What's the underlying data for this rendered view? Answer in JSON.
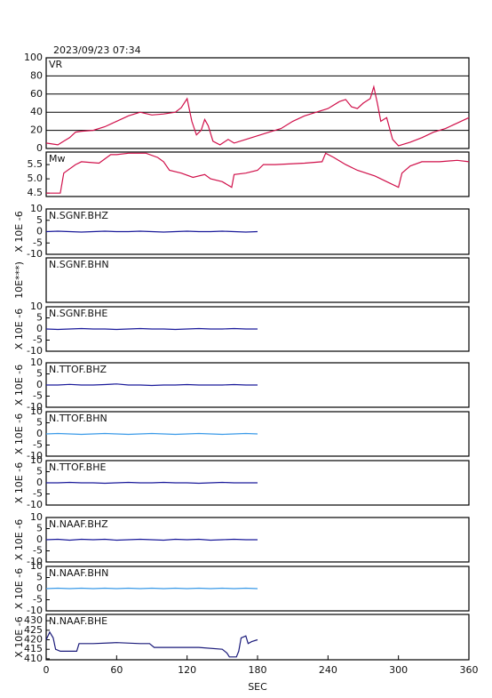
{
  "chart_data": [
    {
      "type": "line",
      "title": "2023/09/23 07:34",
      "label": "VR",
      "color": "#d0104a",
      "grid": true,
      "xlim": [
        0,
        360
      ],
      "ylim": [
        0,
        100
      ],
      "yticks": [
        0,
        20,
        40,
        60,
        80,
        100
      ],
      "x": [
        0,
        10,
        15,
        20,
        25,
        30,
        40,
        50,
        60,
        70,
        80,
        90,
        100,
        110,
        115,
        120,
        124,
        128,
        132,
        135,
        138,
        142,
        148,
        155,
        160,
        170,
        180,
        190,
        200,
        210,
        220,
        230,
        240,
        250,
        255,
        260,
        265,
        270,
        276,
        279,
        282,
        285,
        290,
        295,
        300,
        310,
        320,
        330,
        340,
        350,
        360
      ],
      "values": [
        6,
        4,
        8,
        12,
        18,
        19,
        20,
        24,
        30,
        36,
        40,
        37,
        38,
        40,
        45,
        55,
        30,
        15,
        20,
        32,
        25,
        8,
        4,
        10,
        6,
        10,
        14,
        18,
        22,
        30,
        36,
        40,
        44,
        52,
        54,
        46,
        44,
        50,
        55,
        68,
        50,
        30,
        34,
        10,
        3,
        7,
        12,
        18,
        22,
        28,
        34
      ]
    },
    {
      "type": "line",
      "label": "Mw",
      "color": "#d0104a",
      "xlim": [
        0,
        360
      ],
      "ylim": [
        4.38,
        5.94
      ],
      "yticks": [
        4.5,
        {
          "value": 5,
          "label": "5.0"
        },
        5.5
      ],
      "x": [
        0,
        12,
        15,
        25,
        30,
        45,
        55,
        60,
        70,
        85,
        95,
        100,
        105,
        115,
        125,
        135,
        140,
        150,
        158,
        160,
        170,
        180,
        185,
        195,
        220,
        235,
        238,
        245,
        255,
        265,
        280,
        290,
        300,
        303,
        310,
        320,
        335,
        350,
        360
      ],
      "values": [
        4.5,
        4.5,
        5.2,
        5.5,
        5.6,
        5.55,
        5.85,
        5.85,
        5.9,
        5.9,
        5.75,
        5.6,
        5.3,
        5.2,
        5.05,
        5.15,
        5.0,
        4.9,
        4.7,
        5.15,
        5.2,
        5.3,
        5.5,
        5.5,
        5.55,
        5.6,
        5.9,
        5.75,
        5.5,
        5.3,
        5.1,
        4.9,
        4.7,
        5.2,
        5.45,
        5.6,
        5.6,
        5.65,
        5.6
      ]
    },
    {
      "type": "line",
      "label": "N.SGNF.BHZ",
      "ylabel": "X 10E -6",
      "color": "#1a1a9a",
      "xlim": [
        0,
        360
      ],
      "ylim": [
        -10,
        10
      ],
      "yticks": [
        -10,
        -5,
        0,
        5,
        10
      ],
      "x": [
        0,
        10,
        20,
        30,
        40,
        50,
        60,
        70,
        80,
        90,
        100,
        110,
        120,
        130,
        140,
        150,
        160,
        170,
        180
      ],
      "values": [
        0,
        0.2,
        0,
        -0.2,
        0,
        0.2,
        0,
        0,
        0.2,
        0,
        -0.2,
        0,
        0.2,
        0,
        0,
        0.2,
        0,
        -0.2,
        0
      ]
    },
    {
      "type": "line",
      "label": "N.SGNF.BHN",
      "ylabel": "10E***)",
      "xlim": [
        0,
        360
      ],
      "ylim": [
        -10,
        10
      ]
    },
    {
      "type": "line",
      "label": "N.SGNF.BHE",
      "ylabel": "X 10E -6",
      "color": "#1a1a9a",
      "xlim": [
        0,
        360
      ],
      "ylim": [
        -10,
        10
      ],
      "yticks": [
        -10,
        -5,
        0,
        5,
        10
      ],
      "x": [
        0,
        10,
        20,
        30,
        40,
        50,
        60,
        70,
        80,
        90,
        100,
        110,
        120,
        130,
        140,
        150,
        160,
        170,
        180
      ],
      "values": [
        0,
        -0.2,
        0,
        0.2,
        0,
        0,
        -0.2,
        0,
        0.2,
        0,
        0,
        -0.2,
        0,
        0.2,
        0,
        0,
        0.2,
        0,
        0
      ]
    },
    {
      "type": "line",
      "label": "N.TTOF.BHZ",
      "ylabel": "X 10E -6",
      "color": "#1a1a9a",
      "xlim": [
        0,
        360
      ],
      "ylim": [
        -10,
        10
      ],
      "yticks": [
        -10,
        -5,
        0,
        5,
        10
      ],
      "x": [
        0,
        10,
        20,
        30,
        40,
        50,
        60,
        70,
        80,
        90,
        100,
        110,
        120,
        130,
        140,
        150,
        160,
        170,
        180
      ],
      "values": [
        0,
        0,
        0.3,
        0,
        0,
        0.2,
        0.5,
        0,
        0,
        -0.2,
        0,
        0,
        0.2,
        0,
        0,
        0,
        0.2,
        0,
        0
      ]
    },
    {
      "type": "line",
      "label": "N.TTOF.BHN",
      "ylabel": "X 10E -6",
      "color": "#3a9ae8",
      "xlim": [
        0,
        360
      ],
      "ylim": [
        -10,
        10
      ],
      "yticks": [
        -10,
        -5,
        0,
        5,
        10
      ],
      "x": [
        0,
        10,
        20,
        30,
        40,
        50,
        60,
        70,
        80,
        90,
        100,
        110,
        120,
        130,
        140,
        150,
        160,
        170,
        180
      ],
      "values": [
        0,
        0.2,
        0,
        -0.2,
        0,
        0.2,
        0,
        -0.2,
        0,
        0.2,
        0,
        -0.2,
        0,
        0.2,
        0,
        -0.2,
        0,
        0.2,
        0
      ]
    },
    {
      "type": "line",
      "label": "N.TTOF.BHE",
      "ylabel": "X 10E -6",
      "color": "#1a1a9a",
      "xlim": [
        0,
        360
      ],
      "ylim": [
        -10,
        10
      ],
      "yticks": [
        -10,
        -5,
        0,
        5,
        10
      ],
      "x": [
        0,
        10,
        20,
        30,
        40,
        50,
        60,
        70,
        80,
        90,
        100,
        110,
        120,
        130,
        140,
        150,
        160,
        170,
        180
      ],
      "values": [
        0,
        0,
        0.2,
        0,
        0,
        -0.2,
        0,
        0.2,
        0,
        0,
        0.2,
        0,
        0,
        -0.2,
        0,
        0.2,
        0,
        0,
        0
      ]
    },
    {
      "type": "line",
      "label": "N.NAAF.BHZ",
      "ylabel": "X 10E -6",
      "color": "#1a1a9a",
      "xlim": [
        0,
        360
      ],
      "ylim": [
        -10,
        10
      ],
      "yticks": [
        -10,
        -5,
        0,
        5,
        10
      ],
      "x": [
        0,
        10,
        20,
        30,
        40,
        50,
        60,
        70,
        80,
        90,
        100,
        110,
        120,
        130,
        140,
        150,
        160,
        170,
        180
      ],
      "values": [
        0,
        0.2,
        -0.2,
        0.2,
        0,
        0.2,
        -0.2,
        0,
        0.2,
        0,
        -0.2,
        0.2,
        0,
        0.2,
        -0.2,
        0,
        0.2,
        0,
        0
      ]
    },
    {
      "type": "line",
      "label": "N.NAAF.BHN",
      "ylabel": "X 10E -6",
      "color": "#3a9ae8",
      "xlim": [
        0,
        360
      ],
      "ylim": [
        -10,
        10
      ],
      "yticks": [
        -10,
        -5,
        0,
        5,
        10
      ],
      "x": [
        0,
        10,
        20,
        30,
        40,
        50,
        60,
        70,
        80,
        90,
        100,
        110,
        120,
        130,
        140,
        150,
        160,
        170,
        180
      ],
      "values": [
        0,
        0.2,
        0,
        0.2,
        0,
        0.2,
        0,
        0.2,
        0,
        0.2,
        0,
        0.2,
        0,
        0.2,
        0,
        0.2,
        0,
        0.2,
        0
      ]
    },
    {
      "type": "line",
      "label": "N.NAAF.BHE",
      "ylabel": "X 10E -6",
      "xlabel": "SEC",
      "color": "#1a1a7a",
      "xlim": [
        0,
        360
      ],
      "xticks": [
        0,
        60,
        120,
        180,
        240,
        300,
        360
      ],
      "ylim": [
        409.5,
        433.3
      ],
      "yticks": [
        410,
        415,
        420,
        425,
        430
      ],
      "x": [
        0,
        3,
        6,
        8,
        12,
        20,
        26,
        28,
        40,
        60,
        80,
        88,
        92,
        110,
        130,
        150,
        154,
        156,
        162,
        164,
        166,
        170,
        172,
        175,
        180
      ],
      "values": [
        420,
        424,
        421,
        415,
        414,
        414,
        414,
        418,
        418,
        418.5,
        418,
        418,
        416,
        416,
        416,
        415,
        413,
        411,
        411,
        414,
        421,
        422,
        418,
        419,
        420
      ]
    }
  ]
}
